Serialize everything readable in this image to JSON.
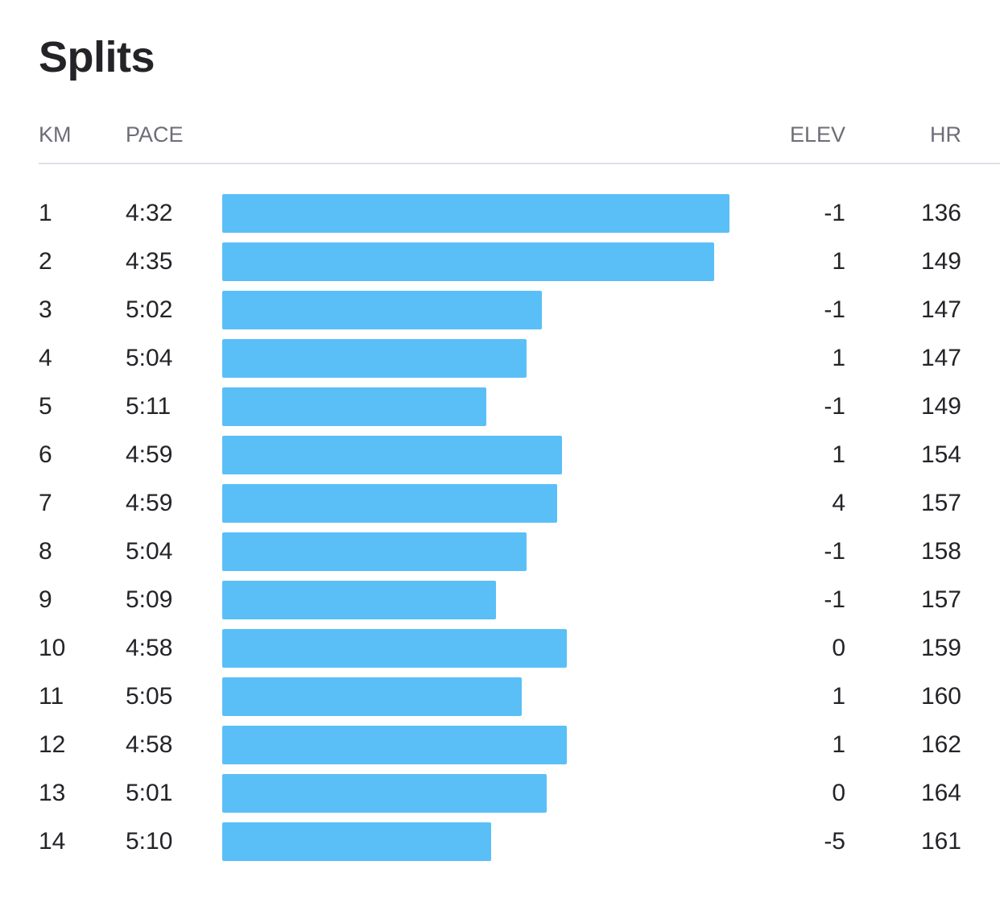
{
  "title": "Splits",
  "headers": {
    "km": "KM",
    "pace": "PACE",
    "elev": "ELEV",
    "hr": "HR"
  },
  "colors": {
    "bar": "#5bbff7"
  },
  "chart_data": {
    "type": "bar",
    "orientation": "horizontal",
    "categories": [
      "1",
      "2",
      "3",
      "4",
      "5",
      "6",
      "7",
      "8",
      "9",
      "10",
      "11",
      "12",
      "13",
      "14"
    ],
    "pace": [
      "4:32",
      "4:35",
      "5:02",
      "5:04",
      "5:11",
      "4:59",
      "4:59",
      "5:04",
      "5:09",
      "4:58",
      "5:05",
      "4:58",
      "5:01",
      "5:10"
    ],
    "bar_fraction": [
      1.0,
      0.97,
      0.63,
      0.6,
      0.52,
      0.67,
      0.66,
      0.6,
      0.54,
      0.68,
      0.59,
      0.68,
      0.64,
      0.53
    ],
    "elev": [
      "-1",
      "1",
      "-1",
      "1",
      "-1",
      "1",
      "4",
      "-1",
      "-1",
      "0",
      "1",
      "1",
      "0",
      "-5"
    ],
    "hr": [
      "136",
      "149",
      "147",
      "147",
      "149",
      "154",
      "157",
      "158",
      "157",
      "159",
      "160",
      "162",
      "164",
      "161"
    ]
  }
}
